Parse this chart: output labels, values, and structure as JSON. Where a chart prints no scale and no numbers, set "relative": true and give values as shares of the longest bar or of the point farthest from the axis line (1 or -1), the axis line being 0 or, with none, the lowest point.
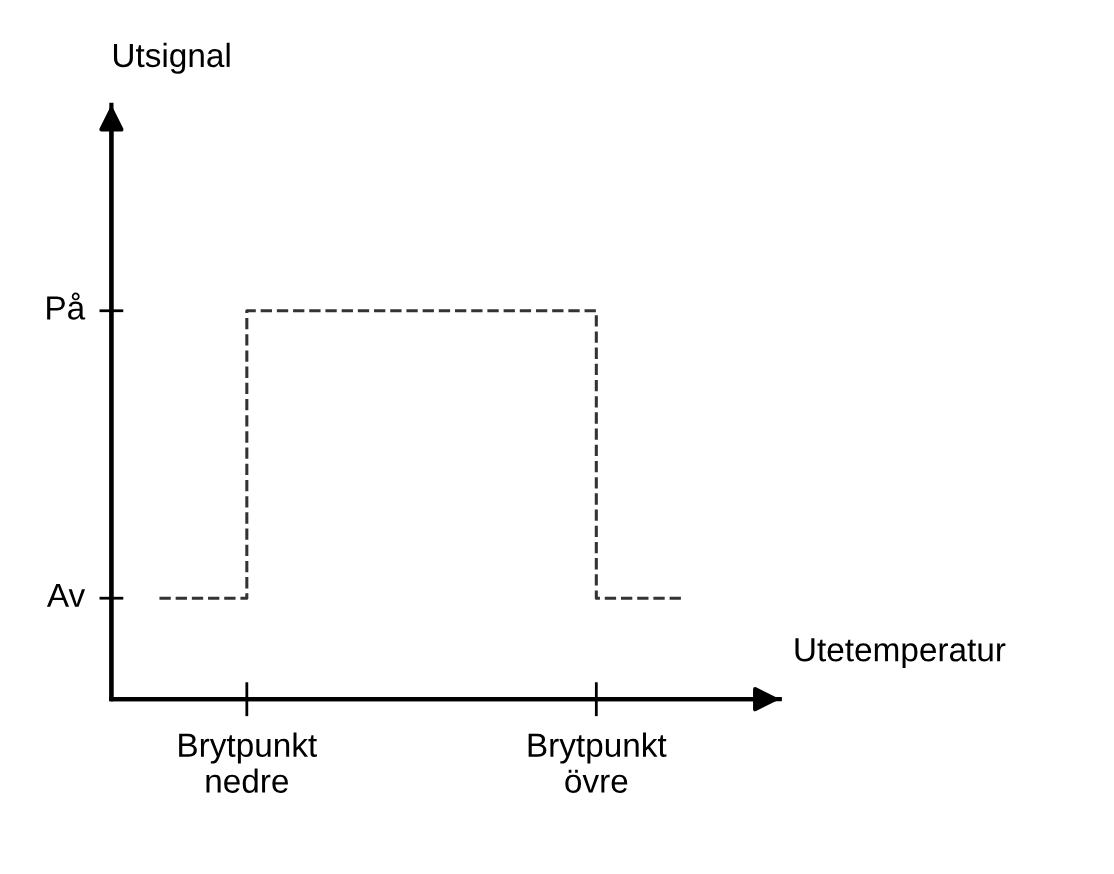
{
  "chart_data": {
    "type": "step",
    "relative": true,
    "xlabel": "Utetemperatur",
    "categories": [
      null,
      "Brytpunkt\nnedre",
      null,
      null,
      null,
      "Brytpunkt\növre",
      null
    ],
    "values": [
      0.26,
      1,
      1,
      1,
      1,
      0.26,
      0.26
    ],
    "color": "#333333",
    "line_style": "dashed",
    "marker": "none",
    "annotations": [
      "Av",
      "På",
      "Utsignal"
    ],
    "grid": false,
    "legend": false
  }
}
